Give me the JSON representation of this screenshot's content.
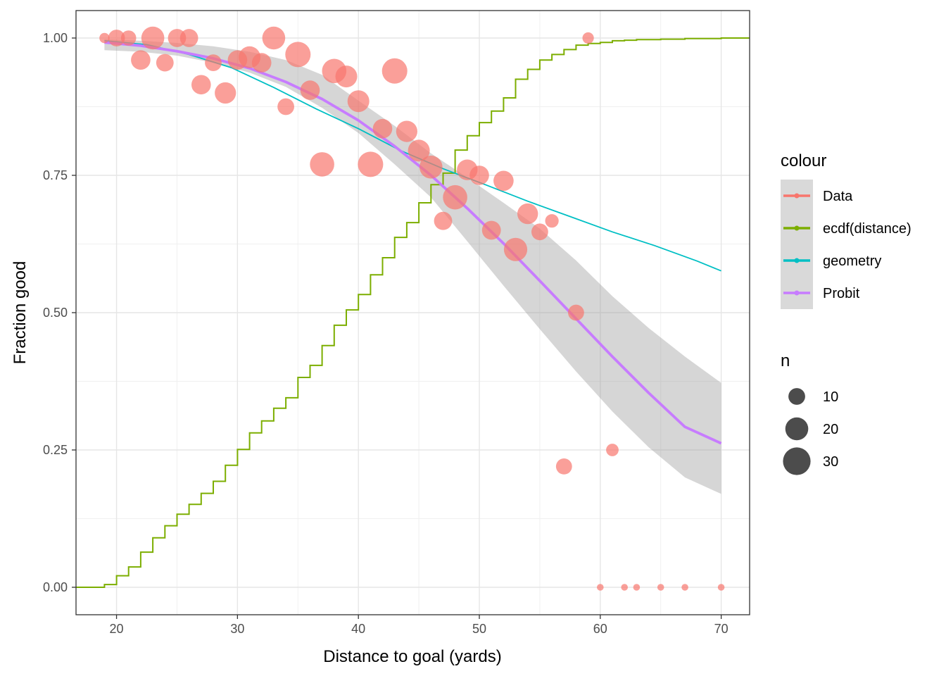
{
  "chart_data": {
    "type": "scatter",
    "title": "",
    "xlabel": "Distance to goal (yards)",
    "ylabel": "Fraction good",
    "xlim": [
      16.65,
      72.35
    ],
    "ylim": [
      -0.05,
      1.05
    ],
    "xticks": [
      20,
      30,
      40,
      50,
      60,
      70
    ],
    "xtick_labels": [
      "20",
      "30",
      "40",
      "50",
      "60",
      "70"
    ],
    "yticks": [
      0,
      0.25,
      0.5,
      0.75,
      1
    ],
    "ytick_labels": [
      "0.00",
      "0.25",
      "0.50",
      "0.75",
      "1.00"
    ],
    "grid": true,
    "theme": "bw",
    "legend_position": "right",
    "colour_legend": {
      "title": "colour",
      "items": [
        {
          "label": "Data",
          "color": "#F8766D"
        },
        {
          "label": "ecdf(distance)",
          "color": "#7CAE00"
        },
        {
          "label": "geometry",
          "color": "#00BFC4"
        },
        {
          "label": "Probit",
          "color": "#C77CFF"
        }
      ]
    },
    "size_legend": {
      "title": "n",
      "items": [
        {
          "label": "10",
          "value": 10
        },
        {
          "label": "20",
          "value": 20
        },
        {
          "label": "30",
          "value": 30
        }
      ]
    },
    "series": [
      {
        "name": "Data",
        "kind": "points",
        "color": "#F8766D",
        "x": [
          19,
          20,
          21,
          22,
          23,
          24,
          25,
          26,
          27,
          28,
          29,
          30,
          31,
          32,
          33,
          34,
          35,
          36,
          37,
          38,
          39,
          40,
          41,
          42,
          43,
          44,
          45,
          46,
          47,
          48,
          49,
          50,
          51,
          52,
          53,
          54,
          55,
          56,
          57,
          58,
          59,
          60,
          61,
          62,
          63,
          65,
          67,
          70
        ],
        "y": [
          1.0,
          1.0,
          1.0,
          0.96,
          1.0,
          0.955,
          1.0,
          1.0,
          0.915,
          0.955,
          0.9,
          0.96,
          0.965,
          0.955,
          1.0,
          0.875,
          0.97,
          0.905,
          0.77,
          0.94,
          0.93,
          0.885,
          0.77,
          0.835,
          0.94,
          0.83,
          0.795,
          0.765,
          0.667,
          0.71,
          0.76,
          0.75,
          0.65,
          0.74,
          0.615,
          0.68,
          0.647,
          0.667,
          0.22,
          0.5,
          1.0,
          0.0,
          0.25,
          0.0,
          0.0,
          0.0,
          0.0,
          0.0
        ],
        "n": [
          3,
          10,
          8,
          14,
          20,
          11,
          12,
          12,
          14,
          10,
          17,
          14,
          18,
          14,
          20,
          10,
          25,
          14,
          23,
          23,
          18,
          18,
          25,
          14,
          25,
          17,
          18,
          20,
          12,
          23,
          16,
          14,
          13,
          15,
          21,
          16,
          10,
          6,
          9,
          9,
          4,
          1,
          5,
          1,
          1,
          1,
          1,
          1
        ]
      },
      {
        "name": "ecdf(distance)",
        "kind": "step",
        "color": "#7CAE00",
        "x": [
          19,
          20,
          21,
          22,
          23,
          24,
          25,
          26,
          27,
          28,
          29,
          30,
          31,
          32,
          33,
          34,
          35,
          36,
          37,
          38,
          39,
          40,
          41,
          42,
          43,
          44,
          45,
          46,
          47,
          48,
          49,
          50,
          51,
          52,
          53,
          54,
          55,
          56,
          57,
          58,
          59,
          60,
          61,
          62,
          63,
          65,
          67,
          70
        ],
        "y": [
          0.005,
          0.021,
          0.037,
          0.064,
          0.09,
          0.112,
          0.133,
          0.151,
          0.171,
          0.193,
          0.222,
          0.251,
          0.281,
          0.303,
          0.326,
          0.345,
          0.382,
          0.404,
          0.44,
          0.477,
          0.505,
          0.533,
          0.569,
          0.6,
          0.637,
          0.664,
          0.7,
          0.733,
          0.754,
          0.796,
          0.822,
          0.846,
          0.867,
          0.891,
          0.925,
          0.943,
          0.96,
          0.97,
          0.979,
          0.987,
          0.99,
          0.992,
          0.995,
          0.996,
          0.997,
          0.998,
          0.999,
          1.0
        ]
      },
      {
        "name": "geometry",
        "kind": "line",
        "color": "#00BFC4",
        "x": [
          19,
          22.5,
          26,
          29.5,
          33,
          36.5,
          40,
          43.5,
          47,
          50.5,
          54,
          57.5,
          61,
          64.5,
          68,
          70
        ],
        "y": [
          0.995,
          0.988,
          0.97,
          0.946,
          0.91,
          0.871,
          0.835,
          0.795,
          0.762,
          0.733,
          0.703,
          0.675,
          0.647,
          0.622,
          0.594,
          0.576
        ]
      },
      {
        "name": "Probit",
        "kind": "line",
        "color": "#C77CFF",
        "x": [
          19,
          22,
          25,
          28,
          31,
          34,
          37,
          40,
          43,
          46,
          49,
          52,
          55,
          58,
          61,
          64,
          67,
          70
        ],
        "y": [
          0.992,
          0.986,
          0.976,
          0.963,
          0.945,
          0.92,
          0.889,
          0.85,
          0.803,
          0.75,
          0.69,
          0.626,
          0.558,
          0.489,
          0.42,
          0.354,
          0.292,
          0.262
        ],
        "ci_lower": [
          0.978,
          0.975,
          0.968,
          0.955,
          0.937,
          0.911,
          0.873,
          0.827,
          0.77,
          0.71,
          0.63,
          0.549,
          0.47,
          0.393,
          0.32,
          0.255,
          0.2,
          0.17
        ],
        "ci_upper": [
          0.998,
          0.995,
          0.991,
          0.985,
          0.975,
          0.96,
          0.933,
          0.886,
          0.84,
          0.79,
          0.746,
          0.7,
          0.653,
          0.595,
          0.53,
          0.472,
          0.42,
          0.372
        ]
      }
    ]
  }
}
